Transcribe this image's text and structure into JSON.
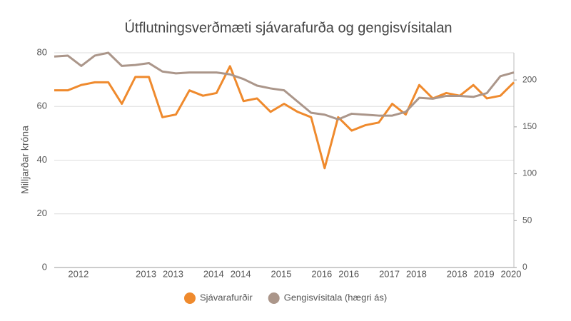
{
  "chart_data": {
    "type": "line",
    "title": "Útflutningsverðmæti sjávarafurða og gengisvísitalan",
    "y_label": "Milljarðar króna",
    "categories": [
      null,
      null,
      "2012",
      null,
      null,
      null,
      null,
      "2013",
      null,
      "2013",
      null,
      null,
      "2014",
      null,
      "2014",
      null,
      null,
      "2015",
      null,
      null,
      "2016",
      null,
      "2016",
      null,
      null,
      "2017",
      null,
      "2018",
      null,
      null,
      "2018",
      null,
      "2019",
      null,
      "2020"
    ],
    "series": [
      {
        "name": "Sjávarafurðir",
        "color": "#ef8a2d",
        "values": [
          66,
          66,
          68,
          69,
          69,
          61,
          71,
          71,
          56,
          57,
          66,
          64,
          65,
          75,
          62,
          63,
          58,
          61,
          58,
          56,
          37,
          56,
          51,
          53,
          54,
          61,
          57,
          68,
          63,
          65,
          64,
          68,
          63,
          64,
          69
        ]
      },
      {
        "name": "Gengisvísitala (hægri ás)",
        "color": "#ab968a",
        "axis": "y2",
        "values": [
          225,
          226,
          215,
          226,
          229,
          215,
          216,
          218,
          209,
          207,
          208,
          208,
          208,
          206,
          201,
          194,
          191,
          189,
          177,
          165,
          163,
          158,
          164,
          163,
          162,
          162,
          166,
          181,
          180,
          183,
          183,
          182,
          186,
          204,
          208
        ]
      }
    ],
    "ylim": [
      0,
      80
    ],
    "yticks": [
      0,
      20,
      40,
      60,
      80
    ],
    "y2lim": [
      0,
      229
    ],
    "y2ticks": [
      0,
      50,
      100,
      150,
      200
    ],
    "grid": true,
    "legend": "bottom"
  }
}
